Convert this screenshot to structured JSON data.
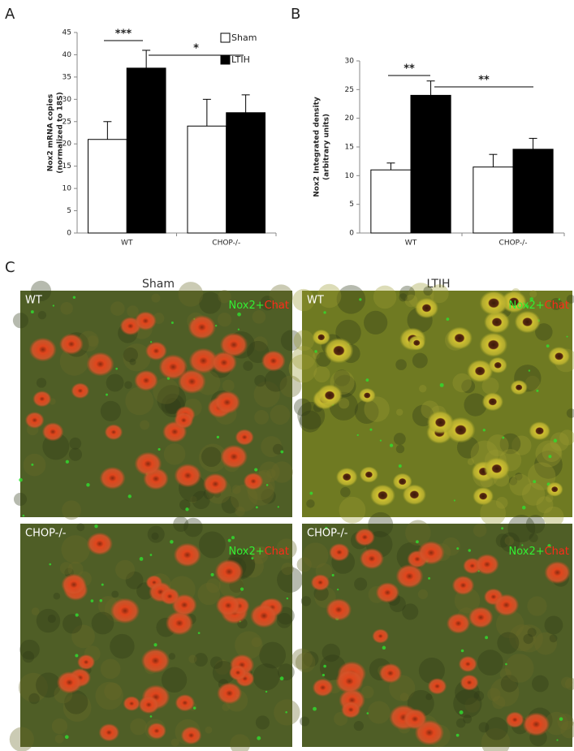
{
  "chart_data": [
    {
      "type": "bar",
      "ylabel": [
        "Nox2 mRNA copies",
        "(normalized to 18S)"
      ],
      "categories": [
        "WT",
        "CHOP-/-"
      ],
      "series": [
        {
          "name": "Sham",
          "color": "#ffffff",
          "values": [
            21,
            24
          ],
          "errors": [
            4,
            6
          ]
        },
        {
          "name": "LTIH",
          "color": "#000000",
          "values": [
            37,
            27
          ],
          "errors": [
            4,
            4
          ]
        }
      ],
      "ylim": [
        0,
        45
      ],
      "yticks": [
        0,
        5,
        10,
        15,
        20,
        25,
        30,
        35,
        40,
        45
      ],
      "legend": "upper right",
      "annotations": [
        "***",
        "*"
      ]
    },
    {
      "type": "bar",
      "ylabel": [
        "Nox2 Integrated density",
        "(arbitrary units)"
      ],
      "categories": [
        "WT",
        "CHOP-/-"
      ],
      "series": [
        {
          "color": "#ffffff",
          "values": [
            11,
            11.5
          ],
          "errors": [
            1.2,
            2.2
          ]
        },
        {
          "color": "#000000",
          "values": [
            24,
            14.6
          ],
          "errors": [
            2.5,
            1.9
          ]
        }
      ],
      "ylim": [
        0,
        30
      ],
      "yticks": [
        0,
        5,
        10,
        15,
        20,
        25,
        30
      ],
      "annotations": [
        "**",
        "**"
      ]
    }
  ],
  "figure": {
    "panel_labels": [
      "A",
      "B",
      "C"
    ],
    "columns": [
      "Sham",
      "LTIH"
    ],
    "images": [
      {
        "label": "WT",
        "stain": [
          "Nox2+",
          "Chat"
        ]
      },
      {
        "label": "WT",
        "stain": [
          "Nox2+",
          "Chat"
        ]
      },
      {
        "label": "CHOP-/-",
        "stain": [
          "Nox2+",
          "Chat"
        ]
      },
      {
        "label": "CHOP-/-",
        "stain": [
          "Nox2+",
          "Chat"
        ]
      }
    ]
  }
}
